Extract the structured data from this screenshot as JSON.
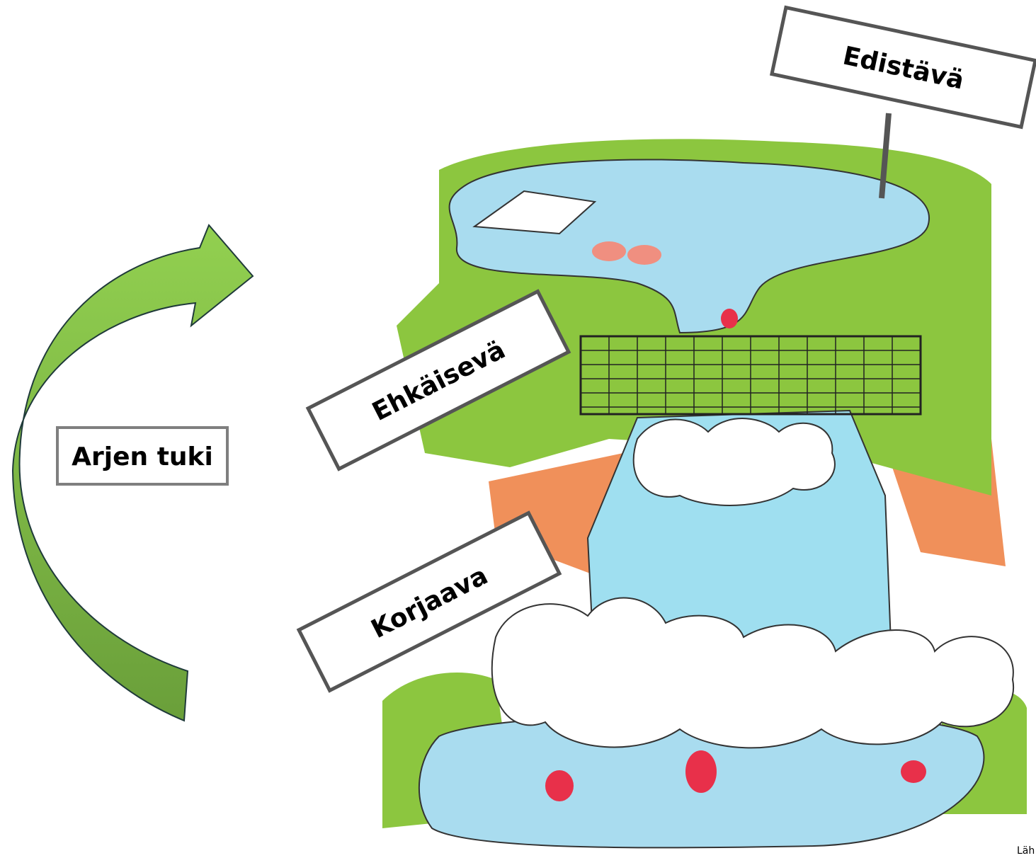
{
  "arrow": {
    "label": "Arjen tuki"
  },
  "signs": [
    {
      "label": "Edistävä"
    },
    {
      "label": "Ehkäisevä"
    },
    {
      "label": "Korjaava"
    }
  ],
  "source": "Läh"
}
